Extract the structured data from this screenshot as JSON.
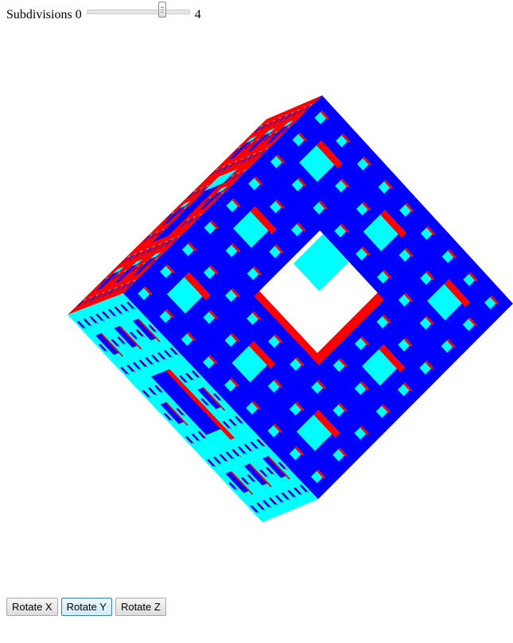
{
  "subdivisions": {
    "label": "Subdivisions",
    "min_label": "0",
    "max_label": "4",
    "min": 0,
    "max": 4,
    "value": 3
  },
  "menger_sponge": {
    "colors": {
      "front_face": "#0000ff",
      "side_face": "#00ffff",
      "top_face": "#ff0000",
      "hole": "#ffffff"
    }
  },
  "buttons": {
    "rotate_x_label": "Rotate X",
    "rotate_y_label": "Rotate Y",
    "rotate_z_label": "Rotate Z",
    "active": "rotate_y"
  }
}
